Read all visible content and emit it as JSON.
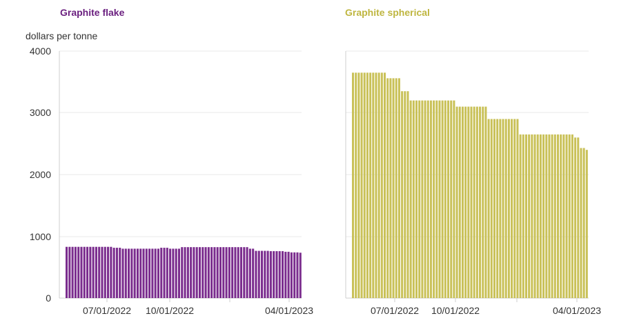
{
  "chart_data": [
    {
      "type": "bar",
      "title": "Graphite flake",
      "ylabel": "dollars per tonne",
      "color": "#7b2d8e",
      "ylim": [
        0,
        4000
      ],
      "yticks": [
        "0",
        "1000",
        "2000",
        "3000",
        "4000"
      ],
      "x_tick_labels": [
        "07/01/2022",
        "10/01/2022",
        "04/01/2023"
      ],
      "grid": true,
      "values": [
        830,
        830,
        830,
        830,
        830,
        830,
        830,
        830,
        830,
        830,
        830,
        830,
        830,
        830,
        830,
        830,
        815,
        815,
        815,
        800,
        800,
        800,
        800,
        800,
        800,
        800,
        800,
        800,
        800,
        800,
        800,
        800,
        815,
        815,
        815,
        800,
        800,
        800,
        800,
        825,
        825,
        825,
        825,
        825,
        825,
        825,
        825,
        825,
        825,
        825,
        825,
        825,
        825,
        825,
        825,
        825,
        825,
        825,
        825,
        825,
        825,
        825,
        800,
        800,
        765,
        765,
        765,
        765,
        765,
        760,
        760,
        760,
        760,
        760,
        750,
        750,
        740,
        740,
        740,
        735
      ]
    },
    {
      "type": "bar",
      "title": "Graphite spherical",
      "color": "#c9c158",
      "ylim": [
        0,
        4000
      ],
      "yticks": [
        "0",
        "1000",
        "2000",
        "3000",
        "4000"
      ],
      "x_tick_labels": [
        "07/01/2022",
        "10/01/2022",
        "04/01/2023"
      ],
      "grid": true,
      "values": [
        3650,
        3650,
        3650,
        3650,
        3650,
        3650,
        3650,
        3650,
        3650,
        3650,
        3650,
        3650,
        3560,
        3560,
        3560,
        3560,
        3560,
        3350,
        3350,
        3350,
        3200,
        3200,
        3200,
        3200,
        3200,
        3200,
        3200,
        3200,
        3200,
        3200,
        3200,
        3200,
        3200,
        3200,
        3200,
        3200,
        3100,
        3100,
        3100,
        3100,
        3100,
        3100,
        3100,
        3100,
        3100,
        3100,
        3100,
        2900,
        2900,
        2900,
        2900,
        2900,
        2900,
        2900,
        2900,
        2900,
        2900,
        2900,
        2650,
        2650,
        2650,
        2650,
        2650,
        2650,
        2650,
        2650,
        2650,
        2650,
        2650,
        2650,
        2650,
        2650,
        2650,
        2650,
        2650,
        2650,
        2650,
        2600,
        2600,
        2430,
        2430,
        2400
      ]
    }
  ]
}
